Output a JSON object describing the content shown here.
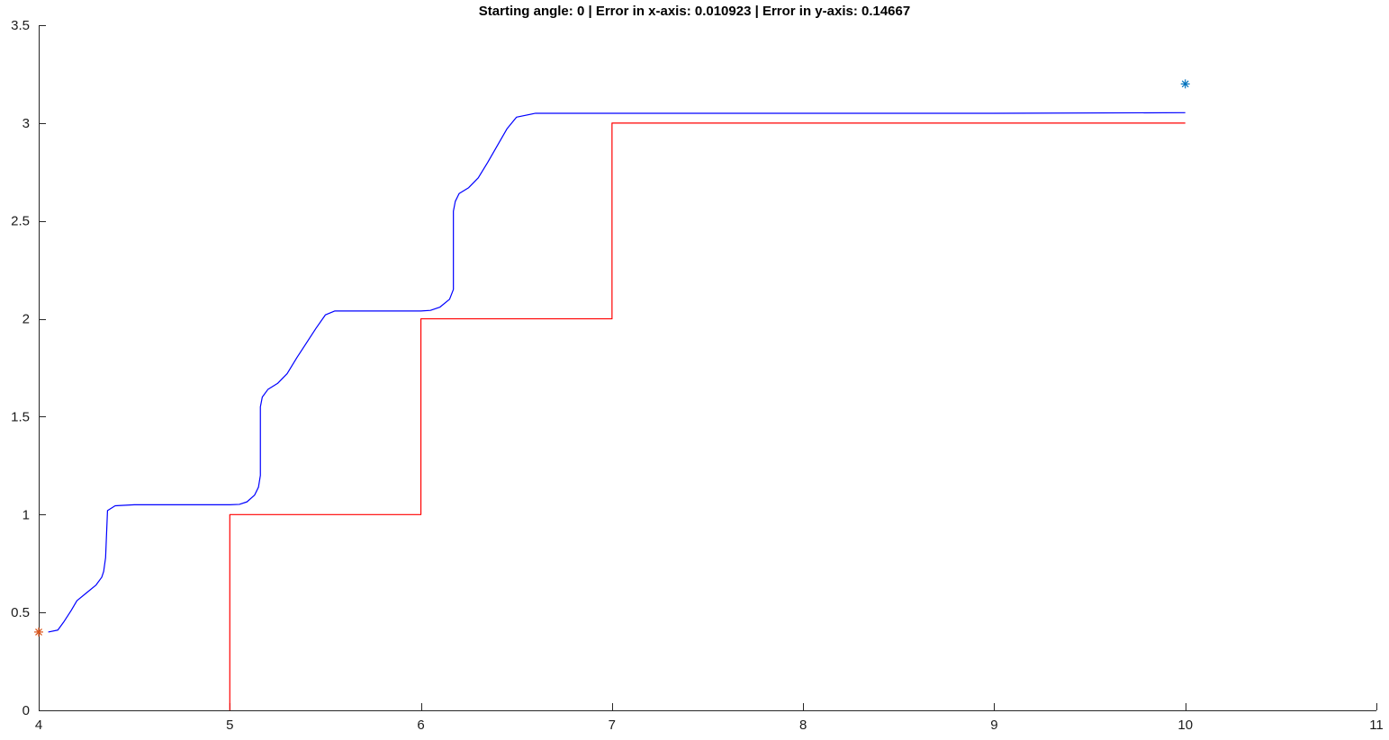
{
  "chart_data": {
    "type": "line",
    "title": "Starting angle: 0 | Error in x-axis: 0.010923 | Error in y-axis: 0.14667",
    "xlabel": "",
    "ylabel": "",
    "xlim": [
      4,
      11
    ],
    "ylim": [
      0,
      3.5
    ],
    "grid": false,
    "x_ticks": [
      4,
      5,
      6,
      7,
      8,
      9,
      10,
      11
    ],
    "y_ticks": [
      0,
      0.5,
      1,
      1.5,
      2,
      2.5,
      3,
      3.5
    ],
    "x_tick_labels": [
      "4",
      "5",
      "6",
      "7",
      "8",
      "9",
      "10",
      "11"
    ],
    "y_tick_labels": [
      "0",
      "0.5",
      "1",
      "1.5",
      "2",
      "2.5",
      "3",
      "3.5"
    ],
    "series": [
      {
        "color": "#ff0000",
        "style": "line",
        "x": [
          5,
          5,
          6,
          6,
          7,
          7,
          10
        ],
        "y": [
          0,
          1,
          1,
          2,
          2,
          3,
          3
        ]
      },
      {
        "color": "#0000ff",
        "style": "line",
        "x": [
          4.05,
          4.1,
          4.13,
          4.17,
          4.2,
          4.25,
          4.3,
          4.33,
          4.34,
          4.35,
          4.36,
          4.4,
          4.5,
          4.7,
          5.0,
          5.05,
          5.09,
          5.13,
          5.15,
          5.16,
          5.16,
          5.17,
          5.2,
          5.25,
          5.3,
          5.35,
          5.45,
          5.5,
          5.55,
          5.7,
          6.0,
          6.05,
          6.1,
          6.15,
          6.17,
          6.17,
          6.18,
          6.2,
          6.25,
          6.3,
          6.35,
          6.45,
          6.5,
          6.6,
          7.0,
          8.0,
          9.0,
          10.0
        ],
        "y": [
          0.4,
          0.41,
          0.45,
          0.51,
          0.56,
          0.6,
          0.64,
          0.68,
          0.71,
          0.78,
          1.02,
          1.045,
          1.05,
          1.05,
          1.05,
          1.052,
          1.065,
          1.1,
          1.14,
          1.2,
          1.55,
          1.6,
          1.64,
          1.67,
          1.72,
          1.8,
          1.95,
          2.02,
          2.04,
          2.04,
          2.04,
          2.043,
          2.06,
          2.1,
          2.15,
          2.55,
          2.6,
          2.64,
          2.67,
          2.72,
          2.8,
          2.97,
          3.03,
          3.05,
          3.05,
          3.05,
          3.05,
          3.053
        ]
      }
    ],
    "markers": [
      {
        "x": 4,
        "y": 0.4,
        "symbol": "*",
        "color": "#d95319"
      },
      {
        "x": 10,
        "y": 3.2,
        "symbol": "*",
        "color": "#0072bd"
      }
    ]
  }
}
